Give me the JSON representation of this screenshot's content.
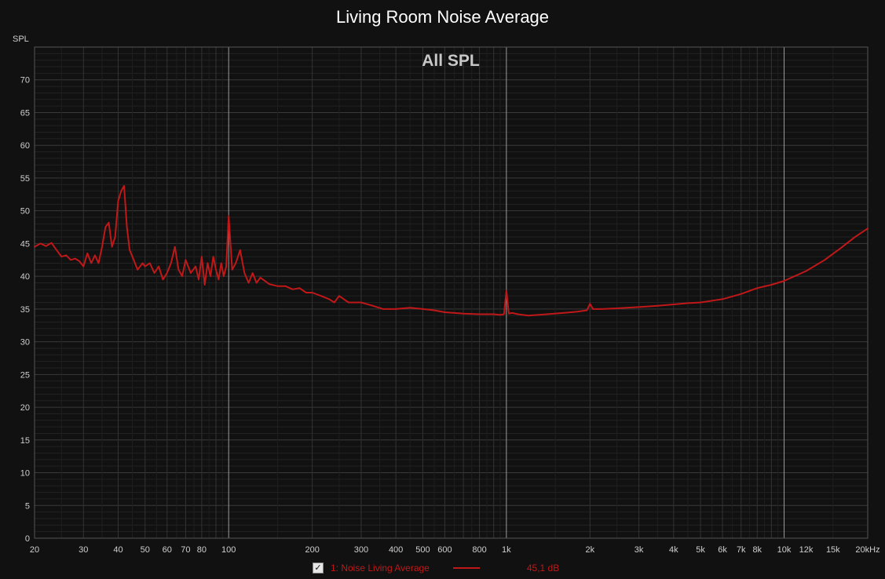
{
  "chart_data": {
    "type": "line",
    "title": "Living Room Noise Average",
    "subtitle": "All SPL",
    "ylabel": "SPL",
    "xlabel": "",
    "x_scale": "log",
    "xlim": [
      20,
      20000
    ],
    "ylim": [
      0,
      75
    ],
    "grid": true,
    "legend_position": "bottom",
    "y_ticks": [
      0,
      5,
      10,
      15,
      20,
      25,
      30,
      35,
      40,
      45,
      50,
      55,
      60,
      65,
      70
    ],
    "x_ticks": [
      {
        "v": 20,
        "label": "20"
      },
      {
        "v": 30,
        "label": "30"
      },
      {
        "v": 40,
        "label": "40"
      },
      {
        "v": 50,
        "label": "50"
      },
      {
        "v": 60,
        "label": "60"
      },
      {
        "v": 70,
        "label": "70"
      },
      {
        "v": 80,
        "label": "80"
      },
      {
        "v": 100,
        "label": "100"
      },
      {
        "v": 200,
        "label": "200"
      },
      {
        "v": 300,
        "label": "300"
      },
      {
        "v": 400,
        "label": "400"
      },
      {
        "v": 500,
        "label": "500"
      },
      {
        "v": 600,
        "label": "600"
      },
      {
        "v": 800,
        "label": "800"
      },
      {
        "v": 1000,
        "label": "1k"
      },
      {
        "v": 2000,
        "label": "2k"
      },
      {
        "v": 3000,
        "label": "3k"
      },
      {
        "v": 4000,
        "label": "4k"
      },
      {
        "v": 5000,
        "label": "5k"
      },
      {
        "v": 6000,
        "label": "6k"
      },
      {
        "v": 7000,
        "label": "7k"
      },
      {
        "v": 8000,
        "label": "8k"
      },
      {
        "v": 10000,
        "label": "10k"
      },
      {
        "v": 12000,
        "label": "12k"
      },
      {
        "v": 15000,
        "label": "15k"
      },
      {
        "v": 20000,
        "label": "20kHz"
      }
    ],
    "series": [
      {
        "name": "1: Noise Living Average",
        "color": "#c01818",
        "legend_value": "45,1 dB",
        "x": [
          20,
          21,
          22,
          23,
          24,
          25,
          26,
          27,
          28,
          29,
          30,
          31,
          32,
          33,
          34,
          35,
          36,
          37,
          38,
          39,
          40,
          41,
          42,
          43,
          44,
          45,
          47,
          49,
          50,
          52,
          54,
          56,
          58,
          60,
          62,
          64,
          66,
          68,
          70,
          73,
          76,
          78,
          80,
          82,
          84,
          86,
          88,
          90,
          92,
          94,
          96,
          98,
          100,
          103,
          106,
          110,
          114,
          118,
          122,
          126,
          130,
          140,
          150,
          160,
          170,
          180,
          190,
          200,
          215,
          230,
          240,
          250,
          270,
          300,
          330,
          360,
          400,
          450,
          500,
          550,
          600,
          650,
          700,
          800,
          900,
          950,
          980,
          1000,
          1020,
          1050,
          1100,
          1200,
          1400,
          1600,
          1800,
          1950,
          2000,
          2050,
          2200,
          2500,
          3000,
          3500,
          4000,
          4500,
          5000,
          6000,
          7000,
          8000,
          9000,
          10000,
          12000,
          14000,
          16000,
          18000,
          20000
        ],
        "values": [
          44.5,
          45.0,
          44.6,
          45.1,
          44.0,
          43.0,
          43.2,
          42.5,
          42.7,
          42.3,
          41.5,
          43.5,
          42.0,
          43.2,
          42.0,
          44.5,
          47.5,
          48.2,
          44.5,
          46.0,
          51.5,
          53.0,
          53.8,
          47.5,
          44.0,
          43.0,
          41.0,
          42.0,
          41.5,
          42.0,
          40.5,
          41.5,
          39.5,
          40.5,
          42.0,
          44.5,
          41.0,
          40.0,
          42.5,
          40.5,
          41.5,
          39.5,
          43.0,
          38.7,
          42.0,
          40.0,
          43.0,
          41.0,
          39.5,
          42.0,
          40.0,
          41.5,
          49.2,
          41.0,
          42.0,
          44.0,
          40.5,
          39.0,
          40.5,
          39.0,
          39.8,
          38.8,
          38.5,
          38.5,
          38.0,
          38.2,
          37.5,
          37.5,
          37.0,
          36.5,
          36.0,
          37.0,
          36.0,
          36.0,
          35.5,
          35.0,
          35.0,
          35.2,
          35.0,
          34.8,
          34.5,
          34.4,
          34.3,
          34.2,
          34.2,
          34.1,
          34.2,
          37.8,
          34.3,
          34.4,
          34.2,
          34.0,
          34.2,
          34.4,
          34.6,
          34.8,
          35.8,
          35.0,
          35.0,
          35.1,
          35.3,
          35.5,
          35.7,
          35.9,
          36.0,
          36.5,
          37.3,
          38.2,
          38.7,
          39.3,
          40.8,
          42.5,
          44.3,
          46.0,
          47.3
        ]
      }
    ]
  }
}
